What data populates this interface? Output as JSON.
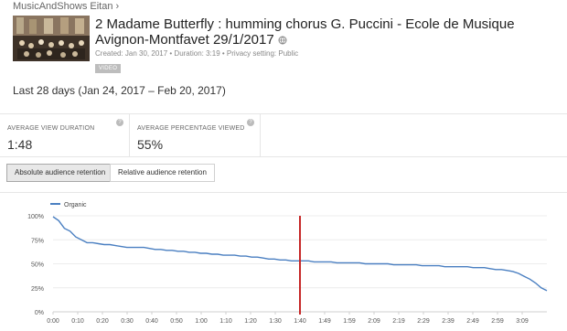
{
  "breadcrumb": {
    "channel": "MusicAndShows Eitan",
    "chevron": "›"
  },
  "video": {
    "title": "2 Madame Butterfly : humming chorus G. Puccini - Ecole de Musique Avignon-Montfavet 29/1/2017",
    "meta": "Created: Jan 30, 2017  •  Duration: 3:19  •  Privacy setting: Public",
    "badge": "VIDEO"
  },
  "date_range": "Last 28 days (Jan 24, 2017 – Feb 20, 2017)",
  "metrics": [
    {
      "label": "AVERAGE VIEW DURATION",
      "value": "1:48"
    },
    {
      "label": "AVERAGE PERCENTAGE VIEWED",
      "value": "55%"
    }
  ],
  "help_glyph": "?",
  "toggles": {
    "absolute": "Absolute audience retention",
    "relative": "Relative audience retention"
  },
  "colors": {
    "series": "#4a7fc1",
    "marker": "#c62828",
    "axis": "#cfcfcf"
  },
  "chart_data": {
    "type": "line",
    "legend": "Organic",
    "legend_position": "top-left",
    "grid": true,
    "y_ticks": [
      "100%",
      "75%",
      "50%",
      "25%",
      "0%"
    ],
    "ylim": [
      0,
      100
    ],
    "x_ticks": [
      "0:00",
      "0:10",
      "0:20",
      "0:30",
      "0:40",
      "0:50",
      "1:00",
      "1:10",
      "1:20",
      "1:30",
      "1:40",
      "1:49",
      "1:59",
      "2:09",
      "2:19",
      "2:29",
      "2:39",
      "2:49",
      "2:59",
      "3:09"
    ],
    "marker_at": "1:40",
    "series": [
      {
        "name": "Organic",
        "values": [
          99,
          95,
          87,
          84,
          78,
          75,
          72,
          72,
          71,
          70,
          70,
          69,
          68,
          67,
          67,
          67,
          67,
          66,
          65,
          65,
          64,
          64,
          63,
          63,
          62,
          62,
          61,
          61,
          60,
          60,
          59,
          59,
          59,
          58,
          58,
          57,
          57,
          56,
          55,
          55,
          54,
          54,
          53,
          53,
          53,
          53,
          52,
          52,
          52,
          52,
          51,
          51,
          51,
          51,
          51,
          50,
          50,
          50,
          50,
          50,
          49,
          49,
          49,
          49,
          49,
          48,
          48,
          48,
          48,
          47,
          47,
          47,
          47,
          47,
          46,
          46,
          46,
          45,
          44,
          44,
          43,
          42,
          40,
          37,
          34,
          30,
          25,
          22
        ]
      }
    ]
  }
}
